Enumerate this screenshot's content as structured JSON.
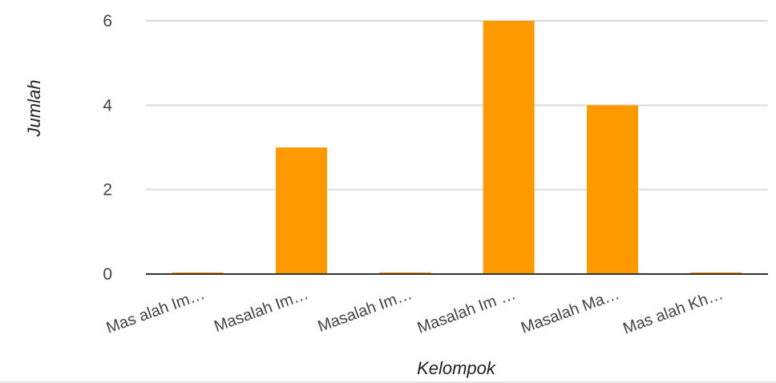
{
  "chart_data": {
    "type": "bar",
    "title": "",
    "xlabel": "Kelompok",
    "ylabel": "Jumlah",
    "categories": [
      "Mas alah Im…",
      "Masalah Im…",
      "Masalah Im…",
      "Masalah Im …",
      "Masalah Ma…",
      "Mas alah Kh…"
    ],
    "values": [
      0,
      3,
      0,
      6,
      4,
      0
    ],
    "ylim": [
      0,
      6
    ],
    "yticks": [
      "0",
      "2",
      "4",
      "6"
    ],
    "grid": true,
    "legend": "none",
    "colors": {
      "bar": "#ff9900",
      "grid": "#d9d9d9",
      "baseline": "#333333"
    }
  }
}
